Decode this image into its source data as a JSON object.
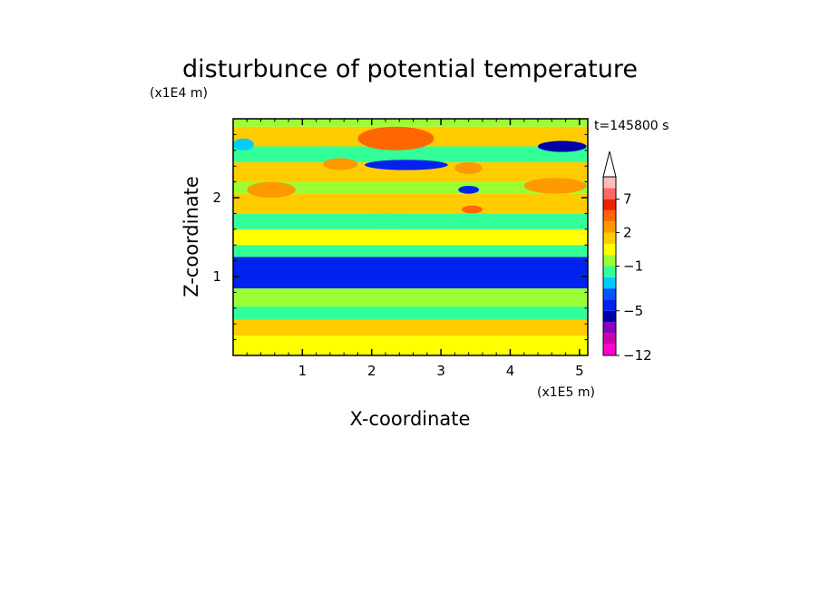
{
  "chart_data": {
    "type": "heatmap",
    "title": "disturbunce of potential temperature",
    "xlabel": "X-coordinate",
    "ylabel": "Z-coordinate",
    "x_unit": "(x1E5 m)",
    "y_unit": "(x1E4 m)",
    "time_label": "t=145800 s",
    "xlim": [
      0,
      5.12
    ],
    "ylim": [
      0,
      3.0
    ],
    "xticks": [
      "1",
      "2",
      "3",
      "4",
      "5"
    ],
    "yticks": [
      "1",
      "2"
    ],
    "colorbar": {
      "levels": [
        -12,
        -10,
        -8,
        -6,
        -5,
        -4,
        -3,
        -2,
        -1,
        0,
        1,
        2,
        3,
        5,
        7,
        9,
        12
      ],
      "colors": [
        "#ff00cc",
        "#cc00aa",
        "#8800bb",
        "#0000aa",
        "#0022ee",
        "#0055ff",
        "#00ccff",
        "#33ff99",
        "#99ff33",
        "#ffff00",
        "#ffcc00",
        "#ff9900",
        "#ff6600",
        "#ee2200",
        "#ff6666",
        "#ffbbbb"
      ],
      "tick_labels": [
        "7",
        "2",
        "−1",
        "−5",
        "−12"
      ]
    },
    "bands": [
      {
        "z": [
          0.0,
          0.25
        ],
        "value": 0.5
      },
      {
        "z": [
          0.25,
          0.45
        ],
        "value": 1.5
      },
      {
        "z": [
          0.45,
          0.62
        ],
        "value": -1.5
      },
      {
        "z": [
          0.62,
          0.85
        ],
        "value": -1.0
      },
      {
        "z": [
          0.85,
          1.25
        ],
        "value": -4.5
      },
      {
        "z": [
          1.25,
          1.4
        ],
        "value": -1.5
      },
      {
        "z": [
          1.4,
          1.6
        ],
        "value": 0.5
      },
      {
        "z": [
          1.6,
          1.8
        ],
        "value": -1.2
      },
      {
        "z": [
          1.8,
          2.05
        ],
        "value": 1.5
      },
      {
        "z": [
          2.05,
          2.2
        ],
        "value": -0.5
      },
      {
        "z": [
          2.2,
          2.45
        ],
        "value": 1.5
      },
      {
        "z": [
          2.45,
          2.65
        ],
        "value": -1.5
      },
      {
        "z": [
          2.65,
          2.9
        ],
        "value": 1.0
      },
      {
        "z": [
          2.9,
          3.0
        ],
        "value": -1.0
      }
    ],
    "features": [
      {
        "x": [
          1.8,
          2.9
        ],
        "z": [
          2.6,
          2.9
        ],
        "value": 3.5
      },
      {
        "x": [
          1.9,
          3.1
        ],
        "z": [
          2.35,
          2.48
        ],
        "value": -4.5
      },
      {
        "x": [
          4.4,
          5.1
        ],
        "z": [
          2.58,
          2.72
        ],
        "value": -5.5
      },
      {
        "x": [
          3.25,
          3.55
        ],
        "z": [
          2.05,
          2.15
        ],
        "value": -4.5
      },
      {
        "x": [
          3.3,
          3.6
        ],
        "z": [
          1.8,
          1.9
        ],
        "value": 3.5
      },
      {
        "x": [
          1.3,
          1.8
        ],
        "z": [
          2.35,
          2.5
        ],
        "value": 2.5
      },
      {
        "x": [
          3.2,
          3.6
        ],
        "z": [
          2.3,
          2.45
        ],
        "value": 2.5
      },
      {
        "x": [
          0.2,
          0.9
        ],
        "z": [
          2.0,
          2.2
        ],
        "value": 2.5
      },
      {
        "x": [
          4.2,
          5.1
        ],
        "z": [
          2.05,
          2.25
        ],
        "value": 2.5
      },
      {
        "x": [
          1.8,
          2.6
        ],
        "z": [
          1.65,
          1.8
        ],
        "value": -1.5
      },
      {
        "x": [
          0.0,
          0.3
        ],
        "z": [
          2.6,
          2.75
        ],
        "value": -2.5
      }
    ]
  }
}
